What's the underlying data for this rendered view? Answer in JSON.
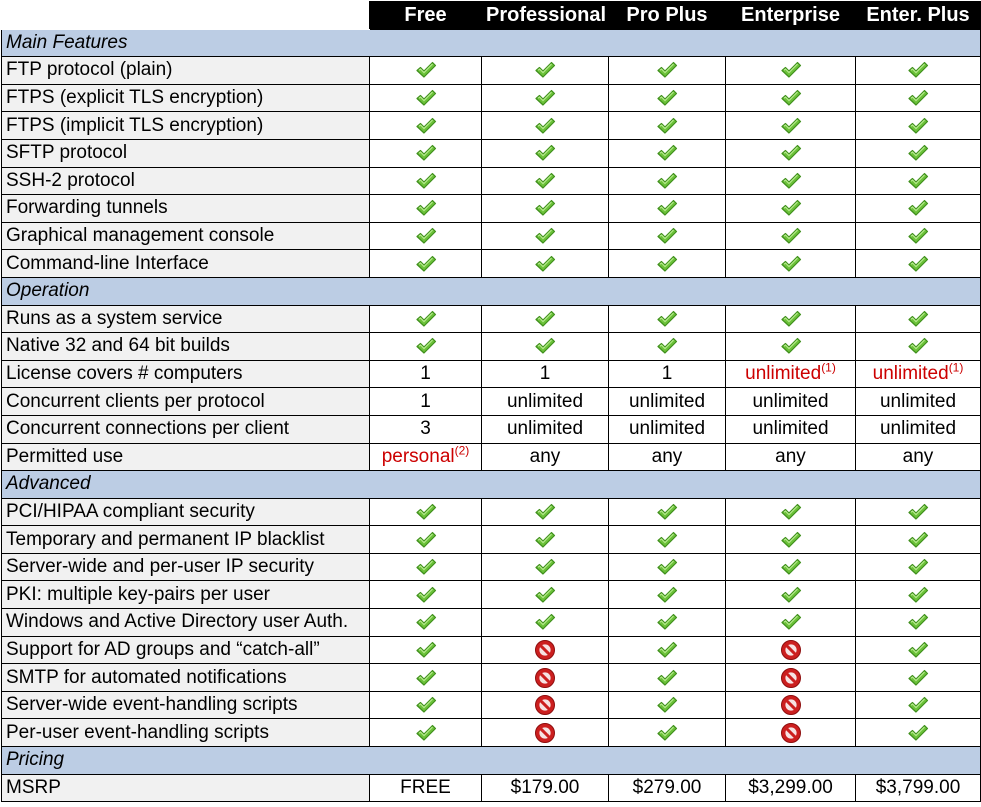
{
  "columns": [
    "Free",
    "Professional",
    "Pro Plus",
    "Enterprise",
    "Enter. Plus"
  ],
  "sections": [
    {
      "title": "Main Features",
      "rows": [
        {
          "label": "FTP protocol (plain)",
          "cells": [
            {
              "icon": "check"
            },
            {
              "icon": "check"
            },
            {
              "icon": "check"
            },
            {
              "icon": "check"
            },
            {
              "icon": "check"
            }
          ]
        },
        {
          "label": "FTPS (explicit TLS encryption)",
          "cells": [
            {
              "icon": "check"
            },
            {
              "icon": "check"
            },
            {
              "icon": "check"
            },
            {
              "icon": "check"
            },
            {
              "icon": "check"
            }
          ]
        },
        {
          "label": "FTPS (implicit TLS encryption)",
          "cells": [
            {
              "icon": "check"
            },
            {
              "icon": "check"
            },
            {
              "icon": "check"
            },
            {
              "icon": "check"
            },
            {
              "icon": "check"
            }
          ]
        },
        {
          "label": "SFTP protocol",
          "cells": [
            {
              "icon": "check"
            },
            {
              "icon": "check"
            },
            {
              "icon": "check"
            },
            {
              "icon": "check"
            },
            {
              "icon": "check"
            }
          ]
        },
        {
          "label": "SSH-2 protocol",
          "cells": [
            {
              "icon": "check"
            },
            {
              "icon": "check"
            },
            {
              "icon": "check"
            },
            {
              "icon": "check"
            },
            {
              "icon": "check"
            }
          ]
        },
        {
          "label": "Forwarding tunnels",
          "cells": [
            {
              "icon": "check"
            },
            {
              "icon": "check"
            },
            {
              "icon": "check"
            },
            {
              "icon": "check"
            },
            {
              "icon": "check"
            }
          ]
        },
        {
          "label": "Graphical management console",
          "cells": [
            {
              "icon": "check"
            },
            {
              "icon": "check"
            },
            {
              "icon": "check"
            },
            {
              "icon": "check"
            },
            {
              "icon": "check"
            }
          ]
        },
        {
          "label": "Command-line Interface",
          "cells": [
            {
              "icon": "check"
            },
            {
              "icon": "check"
            },
            {
              "icon": "check"
            },
            {
              "icon": "check"
            },
            {
              "icon": "check"
            }
          ]
        }
      ]
    },
    {
      "title": "Operation",
      "rows": [
        {
          "label": "Runs as a system service",
          "cells": [
            {
              "icon": "check"
            },
            {
              "icon": "check"
            },
            {
              "icon": "check"
            },
            {
              "icon": "check"
            },
            {
              "icon": "check"
            }
          ]
        },
        {
          "label": "Native 32 and 64 bit builds",
          "cells": [
            {
              "icon": "check"
            },
            {
              "icon": "check"
            },
            {
              "icon": "check"
            },
            {
              "icon": "check"
            },
            {
              "icon": "check"
            }
          ]
        },
        {
          "label": "License covers # computers",
          "cells": [
            {
              "text": "1"
            },
            {
              "text": "1"
            },
            {
              "text": "1"
            },
            {
              "text": "unlimited",
              "sup": "(1)",
              "color": "#cc0000"
            },
            {
              "text": "unlimited",
              "sup": "(1)",
              "color": "#cc0000"
            }
          ]
        },
        {
          "label": "Concurrent clients per protocol",
          "cells": [
            {
              "text": "1"
            },
            {
              "text": "unlimited"
            },
            {
              "text": "unlimited"
            },
            {
              "text": "unlimited"
            },
            {
              "text": "unlimited"
            }
          ]
        },
        {
          "label": "Concurrent connections per client",
          "cells": [
            {
              "text": "3"
            },
            {
              "text": "unlimited"
            },
            {
              "text": "unlimited"
            },
            {
              "text": "unlimited"
            },
            {
              "text": "unlimited"
            }
          ]
        },
        {
          "label": "Permitted use",
          "cells": [
            {
              "text": "personal",
              "sup": "(2)",
              "color": "#cc0000"
            },
            {
              "text": "any"
            },
            {
              "text": "any"
            },
            {
              "text": "any"
            },
            {
              "text": "any"
            }
          ]
        }
      ]
    },
    {
      "title": "Advanced",
      "rows": [
        {
          "label": "PCI/HIPAA compliant security",
          "cells": [
            {
              "icon": "check"
            },
            {
              "icon": "check"
            },
            {
              "icon": "check"
            },
            {
              "icon": "check"
            },
            {
              "icon": "check"
            }
          ]
        },
        {
          "label": "Temporary and permanent IP blacklist",
          "cells": [
            {
              "icon": "check"
            },
            {
              "icon": "check"
            },
            {
              "icon": "check"
            },
            {
              "icon": "check"
            },
            {
              "icon": "check"
            }
          ]
        },
        {
          "label": "Server-wide and per-user IP security",
          "cells": [
            {
              "icon": "check"
            },
            {
              "icon": "check"
            },
            {
              "icon": "check"
            },
            {
              "icon": "check"
            },
            {
              "icon": "check"
            }
          ]
        },
        {
          "label": "PKI: multiple key-pairs per user",
          "cells": [
            {
              "icon": "check"
            },
            {
              "icon": "check"
            },
            {
              "icon": "check"
            },
            {
              "icon": "check"
            },
            {
              "icon": "check"
            }
          ]
        },
        {
          "label": "Windows and Active Directory user Auth.",
          "cells": [
            {
              "icon": "check"
            },
            {
              "icon": "check"
            },
            {
              "icon": "check"
            },
            {
              "icon": "check"
            },
            {
              "icon": "check"
            }
          ]
        },
        {
          "label": "Support for AD groups and “catch-all”",
          "cells": [
            {
              "icon": "check"
            },
            {
              "icon": "no"
            },
            {
              "icon": "check"
            },
            {
              "icon": "no"
            },
            {
              "icon": "check"
            }
          ]
        },
        {
          "label": "SMTP for automated notifications",
          "cells": [
            {
              "icon": "check"
            },
            {
              "icon": "no"
            },
            {
              "icon": "check"
            },
            {
              "icon": "no"
            },
            {
              "icon": "check"
            }
          ]
        },
        {
          "label": "Server-wide event-handling scripts",
          "cells": [
            {
              "icon": "check"
            },
            {
              "icon": "no"
            },
            {
              "icon": "check"
            },
            {
              "icon": "no"
            },
            {
              "icon": "check"
            }
          ]
        },
        {
          "label": "Per-user event-handling scripts",
          "cells": [
            {
              "icon": "check"
            },
            {
              "icon": "no"
            },
            {
              "icon": "check"
            },
            {
              "icon": "no"
            },
            {
              "icon": "check"
            }
          ]
        }
      ]
    },
    {
      "title": "Pricing",
      "rows": [
        {
          "label": "MSRP",
          "cells": [
            {
              "text": "FREE"
            },
            {
              "text": "$179.00"
            },
            {
              "text": "$279.00"
            },
            {
              "text": "$3,299.00"
            },
            {
              "text": "$3,799.00"
            }
          ]
        }
      ]
    }
  ],
  "icons": {
    "check": "check-icon",
    "no": "prohibited-icon"
  },
  "colors": {
    "header_bg": "#000000",
    "section_bg": "#bccde4",
    "label_bg": "#f1f1f1",
    "check_green": "#6cc23a",
    "no_red": "#cc1f1f",
    "note_red": "#cc0000"
  }
}
